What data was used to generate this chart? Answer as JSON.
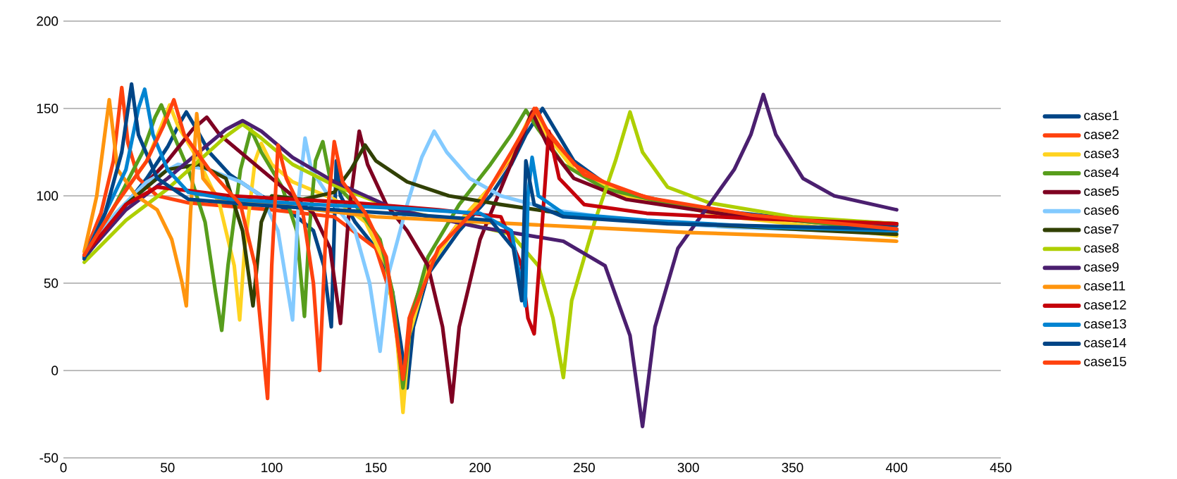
{
  "chart_data": {
    "type": "line",
    "xlim": [
      0,
      450
    ],
    "ylim": [
      -50,
      200
    ],
    "xticks": [
      0,
      50,
      100,
      150,
      200,
      250,
      300,
      350,
      400,
      450
    ],
    "yticks": [
      -50,
      0,
      50,
      100,
      150,
      200
    ],
    "grid": "y",
    "legend": "right",
    "marker": "none",
    "line_style": "solid",
    "series": [
      {
        "name": "case1",
        "color": "#004586",
        "x": [
          10,
          20,
          30,
          40,
          50,
          56,
          59,
          63,
          70,
          80,
          95,
          110,
          120,
          125,
          128.6,
          130,
          131,
          133,
          140,
          150,
          158,
          162,
          165,
          168,
          175,
          190,
          205,
          215,
          222,
          230,
          236,
          245,
          260,
          280,
          310,
          350,
          400
        ],
        "values": [
          64,
          80,
          95,
          110,
          128,
          142,
          148,
          140,
          125,
          112,
          100,
          90,
          80,
          60,
          25,
          80,
          120,
          100,
          85,
          70,
          45,
          15,
          -10,
          25,
          55,
          80,
          100,
          118,
          135,
          150,
          138,
          120,
          107,
          99,
          92,
          87,
          83
        ]
      },
      {
        "name": "case2",
        "color": "#ff420e",
        "x": [
          10,
          18,
          24,
          28,
          31,
          36,
          45,
          60,
          80,
          100,
          130,
          150,
          158,
          163,
          166,
          175,
          190,
          205,
          215,
          226,
          232,
          245,
          265,
          300,
          350,
          400
        ],
        "values": [
          66,
          90,
          120,
          162,
          130,
          110,
          100,
          96,
          94,
          92,
          88,
          70,
          40,
          -8,
          30,
          60,
          85,
          105,
          122,
          150,
          138,
          118,
          104,
          93,
          86,
          80
        ]
      },
      {
        "name": "case3",
        "color": "#ffd320",
        "x": [
          10,
          25,
          40,
          47,
          51,
          55,
          65,
          75,
          82,
          84.6,
          87,
          92,
          95,
          100,
          110,
          130,
          145,
          155,
          160,
          163,
          166,
          175,
          190,
          205,
          215,
          225,
          232,
          245,
          270,
          320,
          400
        ],
        "values": [
          65,
          95,
          120,
          140,
          152,
          140,
          120,
          95,
          60,
          29,
          70,
          120,
          130,
          118,
          108,
          98,
          85,
          60,
          20,
          -24,
          20,
          58,
          85,
          105,
          123,
          148,
          135,
          115,
          100,
          88,
          77
        ]
      },
      {
        "name": "case4",
        "color": "#579d1c",
        "x": [
          10,
          25,
          38,
          44,
          47,
          51,
          60,
          68,
          73,
          76,
          79,
          85,
          90,
          95,
          105,
          112,
          115.7,
          118,
          121,
          124.5,
          128,
          140,
          152,
          158,
          163,
          167,
          175,
          190,
          205,
          215,
          222,
          228,
          240,
          260,
          300,
          350,
          400
        ],
        "values": [
          65,
          95,
          125,
          145,
          152,
          140,
          115,
          85,
          45,
          23,
          60,
          115,
          138,
          125,
          105,
          80,
          31,
          80,
          120,
          131,
          110,
          95,
          75,
          45,
          -10,
          30,
          65,
          95,
          118,
          135,
          149,
          138,
          118,
          104,
          93,
          86,
          80
        ]
      },
      {
        "name": "case5",
        "color": "#7e0021",
        "x": [
          10,
          30,
          50,
          62,
          68.8,
          75,
          90,
          105,
          120,
          128,
          133,
          137,
          142,
          146,
          155,
          165,
          175,
          182,
          186.5,
          190,
          200,
          212,
          225,
          232,
          245,
          270,
          320,
          400
        ],
        "values": [
          65,
          95,
          120,
          138,
          145,
          135,
          120,
          105,
          90,
          70,
          27,
          90,
          137,
          118,
          95,
          80,
          60,
          25,
          -18,
          25,
          75,
          110,
          148,
          130,
          110,
          98,
          89,
          84
        ]
      },
      {
        "name": "case6",
        "color": "#83caff",
        "x": [
          10,
          25,
          40,
          55,
          70,
          85,
          95,
          103,
          110,
          113,
          116,
          119,
          130,
          140,
          147,
          152,
          156,
          165,
          172,
          178,
          184,
          195,
          210,
          235,
          270,
          320,
          400
        ],
        "values": [
          65,
          90,
          108,
          118,
          115,
          108,
          100,
          80,
          29,
          100,
          133,
          115,
          95,
          80,
          50,
          11,
          55,
          95,
          122,
          137,
          125,
          110,
          100,
          92,
          86,
          82,
          79
        ]
      },
      {
        "name": "case7",
        "color": "#314004",
        "x": [
          10,
          30,
          50,
          65,
          78,
          86,
          91,
          95,
          100,
          115,
          130,
          138,
          144.8,
          150,
          165,
          185,
          210,
          250,
          300,
          350,
          400
        ],
        "values": [
          65,
          95,
          115,
          118,
          110,
          80,
          37,
          85,
          100,
          98,
          102,
          115,
          129,
          120,
          108,
          100,
          95,
          88,
          84,
          81,
          78
        ]
      },
      {
        "name": "case8",
        "color": "#aecf00",
        "x": [
          10,
          30,
          50,
          65,
          78,
          86,
          95,
          110,
          130,
          160,
          190,
          215,
          228,
          235,
          240,
          244,
          255,
          265,
          272,
          278,
          290,
          310,
          350,
          400
        ],
        "values": [
          62,
          86,
          104,
          120,
          134,
          141,
          133,
          118,
          106,
          92,
          85,
          78,
          60,
          30,
          -4,
          40,
          85,
          120,
          148,
          125,
          105,
          96,
          88,
          84
        ]
      },
      {
        "name": "case9",
        "color": "#4b1f6f",
        "x": [
          10,
          30,
          50,
          65,
          78,
          86,
          95,
          110,
          130,
          160,
          200,
          240,
          260,
          272,
          278,
          284,
          295,
          310,
          322,
          330,
          336,
          342,
          355,
          370,
          400
        ],
        "values": [
          65,
          92,
          110,
          125,
          138,
          143,
          137,
          122,
          108,
          92,
          82,
          74,
          60,
          20,
          -32,
          25,
          70,
          95,
          115,
          135,
          158,
          135,
          110,
          100,
          92
        ]
      },
      {
        "name": "case11",
        "color": "#ff950e",
        "x": [
          10,
          16,
          22,
          26,
          35,
          45,
          52,
          57,
          59,
          61,
          64,
          67,
          75,
          100,
          150,
          200,
          250,
          300,
          350,
          400
        ],
        "values": [
          68,
          100,
          155,
          115,
          100,
          92,
          75,
          50,
          37,
          90,
          147,
          110,
          98,
          95,
          88,
          85,
          82,
          79,
          77,
          74
        ]
      },
      {
        "name": "case12",
        "color": "#c5000b",
        "x": [
          10,
          30,
          45,
          60,
          80,
          110,
          140,
          180,
          210,
          220,
          223,
          226,
          229,
          233,
          238,
          250,
          280,
          330,
          400
        ],
        "values": [
          66,
          95,
          105,
          103,
          100,
          98,
          96,
          92,
          88,
          60,
          30,
          21,
          70,
          137,
          110,
          95,
          90,
          87,
          84
        ]
      },
      {
        "name": "case13",
        "color": "#0084d1",
        "x": [
          10,
          20,
          30,
          36,
          39,
          43,
          50,
          60,
          80,
          120,
          160,
          200,
          215,
          221.7,
          223,
          225,
          228,
          240,
          280,
          340,
          400
        ],
        "values": [
          65,
          90,
          115,
          150,
          161,
          135,
          115,
          102,
          98,
          95,
          93,
          90,
          80,
          37,
          100,
          122,
          100,
          90,
          86,
          82,
          80
        ]
      },
      {
        "name": "case14",
        "color": "#004586",
        "x": [
          10,
          20,
          28,
          32.7,
          36,
          45,
          60,
          90,
          130,
          170,
          205,
          216,
          220,
          222,
          226,
          240,
          290,
          400
        ],
        "values": [
          64,
          90,
          125,
          164,
          135,
          110,
          98,
          95,
          92,
          89,
          86,
          70,
          40,
          120,
          95,
          88,
          84,
          81
        ]
      },
      {
        "name": "case15",
        "color": "#ff420e",
        "x": [
          10,
          25,
          40,
          48,
          53,
          58,
          70,
          85,
          92,
          98,
          100,
          103,
          107,
          115,
          120,
          123,
          126,
          130,
          134,
          145,
          155,
          160,
          163,
          167,
          180,
          200,
          215,
          227,
          233,
          250,
          280,
          330,
          400
        ],
        "values": [
          66,
          95,
          120,
          140,
          155,
          135,
          115,
          95,
          60,
          -16,
          60,
          129,
          110,
          90,
          50,
          0,
          80,
          131,
          108,
          90,
          65,
          20,
          -5,
          30,
          70,
          95,
          125,
          150,
          135,
          112,
          99,
          89,
          81
        ]
      }
    ]
  }
}
